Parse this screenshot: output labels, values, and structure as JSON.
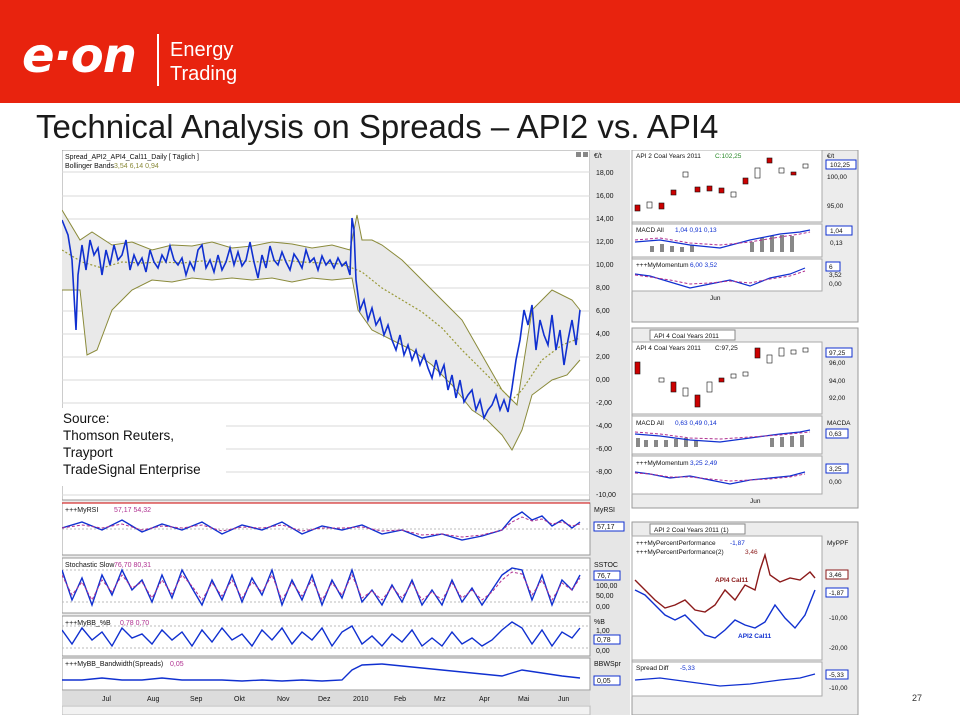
{
  "branding": {
    "logo": "e·on",
    "logo_sub1": "Energy",
    "logo_sub2": "Trading",
    "color": "#e8230e"
  },
  "title": "Technical Analysis on Spreads – API2 vs. API4",
  "page_number": "27",
  "source": {
    "line1": "Source:",
    "line2": "Thomson Reuters,",
    "line3": "Trayport",
    "line4": "TradeSignal Enterprise"
  },
  "left_panels": {
    "main_label": "Spread_API2_API4_Cal11_Daily [ Täglich ]",
    "bollinger_label": "Bollinger Bands",
    "bollinger_values": "3,54 6,14 0,94",
    "main_axis_label": "€/t",
    "main_ticks": [
      "18,00",
      "16,00",
      "14,00",
      "12,00",
      "10,00",
      "8,00",
      "6,00",
      "4,00",
      "2,00",
      "0,00",
      "-2,00",
      "-4,00",
      "-6,00",
      "-8,00",
      "-10,00"
    ],
    "rsi_label": "+++MyRSI",
    "rsi_values": "57,17 54,32",
    "rsi_axis": "MyRSI",
    "rsi_value": "57,17",
    "stoch_label": "Stochastic Slow",
    "stoch_values": "76,70 80,31",
    "stoch_axis": "SSTOC",
    "stoch_value": "76,7",
    "stoch_ticks": [
      "100,00",
      "50,00",
      "0,00"
    ],
    "bb_label": "+++MyBB_%B",
    "bb_values": "0,78 0,70",
    "bb_axis": "%B",
    "bb_value": "0,78",
    "bb_ticks": [
      "1,00",
      "0,00"
    ],
    "bw_label": "+++MyBB_Bandwidth(Spreads)",
    "bw_values": "0,05",
    "bw_axis": "BBWSpr",
    "bw_value": "0,05",
    "months": [
      "Jul",
      "Aug",
      "Sep",
      "Okt",
      "Nov",
      "Dez",
      "2010",
      "Feb",
      "Mrz",
      "Apr",
      "Mai",
      "Jun"
    ]
  },
  "right_panels": {
    "api2_title": "API 2 Coal Years 2011",
    "api2_close": "C:102,25",
    "api2_axis": "€/t",
    "api2_ticks": [
      "102,25",
      "100,00",
      "95,00"
    ],
    "macd1_label": "MACD All",
    "macd1_values": "1,04 0,91 0,13",
    "macd1_ticks": [
      "1,04",
      "0,13"
    ],
    "mom1_label": "+++MyMomentum",
    "mom1_values": "6,00 3,52",
    "mom1_ticks": [
      "6",
      "3,52",
      "0,00"
    ],
    "tab2": "API 4 Coal Years 2011",
    "api4_title": "API 4 Coal Years 2011",
    "api4_close": "C:97,25",
    "api4_ticks": [
      "97,25",
      "96,00",
      "94,00",
      "92,00"
    ],
    "macd2_label": "MACD All",
    "macd2_values": "0,63 0,49 0,14",
    "macd2_axis": "MACDA",
    "macd2_ticks": [
      "0,63"
    ],
    "mom2_label": "+++MyMomentum",
    "mom2_values": "3,25 2,49",
    "mom2_ticks": [
      "3,25",
      "0,00"
    ],
    "tab3": "API 2 Coal Years 2011 (1)",
    "perf_label1": "+++MyPercentPerformance",
    "perf_value1": "-1,87",
    "perf_label2": "+++MyPercentPerformance(2)",
    "perf_value2": "3,46",
    "perf_axis": "MyPPF",
    "perf_ticks": [
      "3,46",
      "-1,87",
      "-10,00",
      "-20,00"
    ],
    "api4_series": "API4 Cal11",
    "api2_series": "API2 Cal11",
    "spread_label": "Spread Diff",
    "spread_value": "-5,33",
    "spread_ticks": [
      "-5,33",
      "-10,00"
    ],
    "jun": "Jun"
  }
}
